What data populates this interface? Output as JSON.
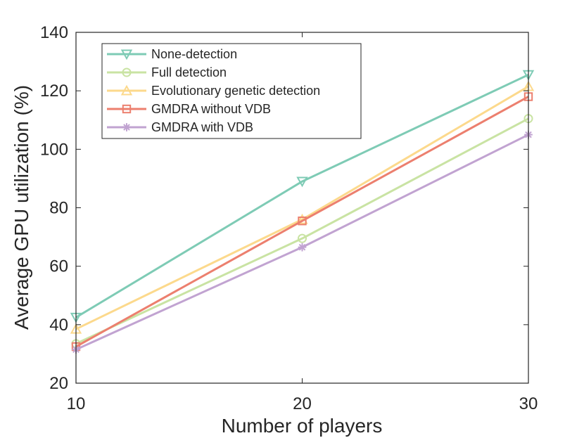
{
  "chart_data": {
    "type": "line",
    "title": "",
    "xlabel": "Number of players",
    "ylabel": "Average GPU utilization (%)",
    "x": [
      10,
      20,
      30
    ],
    "xlim": [
      10,
      30
    ],
    "ylim": [
      20,
      140
    ],
    "xticks": [
      10,
      20,
      30
    ],
    "yticks": [
      20,
      40,
      60,
      80,
      100,
      120,
      140
    ],
    "grid": false,
    "legend_position": "top-left",
    "series": [
      {
        "name": "None-detection",
        "marker": "triangle-down",
        "color": "#7ecbb5",
        "values": [
          42.5,
          89,
          125.5
        ]
      },
      {
        "name": "Full detection",
        "marker": "circle",
        "color": "#c9e3a3",
        "values": [
          33.5,
          69.5,
          110.5
        ]
      },
      {
        "name": "Evolutionary genetic detection",
        "marker": "triangle-up",
        "color": "#fcd98c",
        "values": [
          38.5,
          76,
          121.5
        ]
      },
      {
        "name": "GMDRA without VDB",
        "marker": "square",
        "color": "#ec7f6e",
        "values": [
          32.5,
          75.5,
          118
        ]
      },
      {
        "name": "GMDRA with VDB",
        "marker": "asterisk",
        "color": "#c1a3d1",
        "values": [
          31.5,
          66.5,
          105
        ]
      }
    ]
  }
}
